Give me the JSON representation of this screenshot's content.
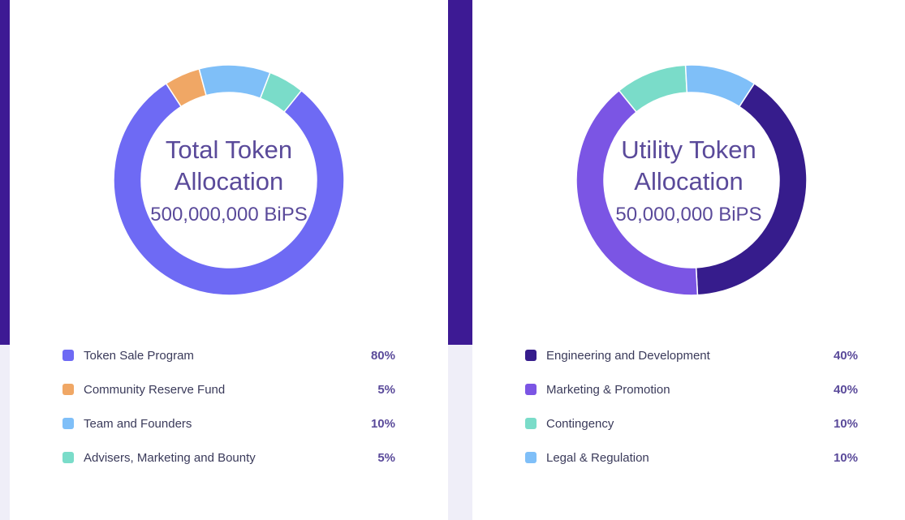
{
  "chart_data": [
    {
      "type": "pie",
      "variant": "donut",
      "title": "Total Token Allocation",
      "subtitle": "500,000,000 BiPS",
      "categories": [
        "Token Sale Program",
        "Community Reserve Fund",
        "Team and Founders",
        "Advisers, Marketing and Bounty"
      ],
      "values": [
        80,
        5,
        10,
        5
      ],
      "value_labels": [
        "80%",
        "5%",
        "10%",
        "5%"
      ],
      "colors": [
        "#6e6af4",
        "#f0a765",
        "#7fbff8",
        "#7adcc9"
      ]
    },
    {
      "type": "pie",
      "variant": "donut",
      "title": "Utility Token Allocation",
      "subtitle": "50,000,000 BiPS",
      "categories": [
        "Engineering and Development",
        "Marketing & Promotion",
        "Contingency",
        "Legal & Regulation"
      ],
      "values": [
        40,
        40,
        10,
        10
      ],
      "value_labels": [
        "40%",
        "40%",
        "10%",
        "10%"
      ],
      "colors": [
        "#361c8c",
        "#7b55e4",
        "#7adcc9",
        "#7fbff8"
      ]
    }
  ],
  "left_card": {
    "title_line1": "Total Token",
    "title_line2": "Allocation",
    "total": "500,000,000 BiPS"
  },
  "right_card": {
    "title_line1": "Utility Token",
    "title_line2": "Allocation",
    "total": "50,000,000 BiPS"
  }
}
